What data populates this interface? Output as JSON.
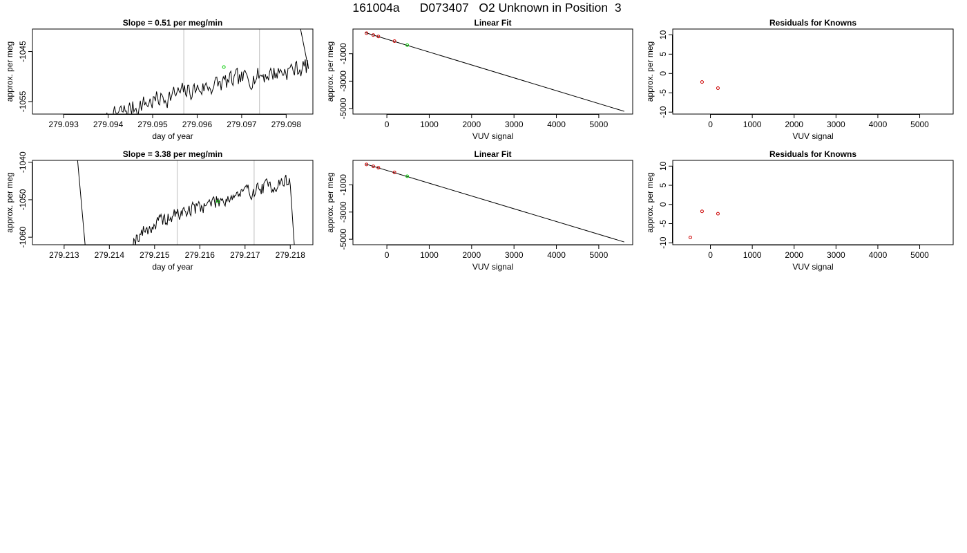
{
  "page_title": "161004a      D073407   O2 Unknown in Position  3",
  "colors": {
    "line": "#000000",
    "marker_known": "#cc0000",
    "marker_unknown": "#00cc00",
    "vline": "#c8c8c8"
  },
  "chart_data": [
    {
      "id": "r1-time",
      "type": "line",
      "panel": "top-left",
      "title": "Slope =  0.51  per meg/min",
      "xlabel": "day of year",
      "ylabel": "approx. per meg",
      "xlim": [
        279.0923,
        279.0986
      ],
      "ylim": [
        -1057.5,
        -1040.5
      ],
      "xticks": [
        "279.093",
        "279.094",
        "279.095",
        "279.096",
        "279.097",
        "279.098"
      ],
      "yticks": [
        "-1045",
        "-1055"
      ],
      "vlines": [
        279.0957,
        279.0974
      ],
      "series_spec": {
        "x_start": 279.0939,
        "x_end": 279.0985,
        "n": 190,
        "start": -1060,
        "end": -1048,
        "amp": 1.6,
        "seed": 7,
        "rise_x": 279.0982,
        "rise_to": -1035,
        "lead_in": 279.0943
      },
      "highlight": [
        279.0966,
        -1048.1
      ]
    },
    {
      "id": "r1-fit",
      "type": "line",
      "panel": "top-middle",
      "title": "Linear Fit",
      "xlabel": "VUV signal",
      "ylabel": "approx. per meg",
      "xlim": [
        -800,
        5800
      ],
      "ylim": [
        -5400,
        800
      ],
      "xticks": [
        "0",
        "1000",
        "2000",
        "3000",
        "4000",
        "5000"
      ],
      "yticks": [
        "-1000",
        "-3000",
        "-5000"
      ],
      "fit": {
        "x": [
          -500,
          5600
        ],
        "y": [
          530,
          -5200
        ]
      },
      "known_points": [
        [
          -480,
          500
        ],
        [
          -320,
          360
        ],
        [
          -200,
          260
        ],
        [
          180,
          -80
        ]
      ],
      "unknown_points": [
        [
          480,
          -370
        ]
      ]
    },
    {
      "id": "r1-resid",
      "type": "scatter",
      "panel": "top-right",
      "title": "Residuals for Knowns",
      "xlabel": "VUV signal",
      "ylabel": "approx. per meg",
      "xlim": [
        -900,
        5800
      ],
      "ylim": [
        -10.5,
        11.5
      ],
      "xticks": [
        "0",
        "1000",
        "2000",
        "3000",
        "4000",
        "5000"
      ],
      "yticks": [
        "10",
        "5",
        "0",
        "-5",
        "-10"
      ],
      "points": [
        [
          -200,
          -2.2
        ],
        [
          180,
          -3.8
        ]
      ]
    },
    {
      "id": "r2-time",
      "type": "line",
      "panel": "bottom-left",
      "title": "Slope =  3.38  per meg/min",
      "xlabel": "day of year",
      "ylabel": "approx. per meg",
      "xlim": [
        279.2123,
        279.2185
      ],
      "ylim": [
        -1062,
        -1039.5
      ],
      "xticks": [
        "279.213",
        "279.214",
        "279.215",
        "279.216",
        "279.217",
        "279.218"
      ],
      "yticks": [
        "-1040",
        "-1050",
        "-1060"
      ],
      "vlines": [
        279.2155,
        279.2172
      ],
      "series_spec": {
        "x_start": 279.2145,
        "x_end": 279.218,
        "n": 180,
        "start": -1062,
        "end": -1045,
        "amp": 1.7,
        "seed": 19,
        "drop_x": 279.2181,
        "drop_to": -1064,
        "spike_x": [
          279.21315,
          279.2135
        ]
      },
      "highlight": [
        279.2164,
        -1050.5
      ]
    },
    {
      "id": "r2-fit",
      "type": "line",
      "panel": "bottom-middle",
      "title": "Linear Fit",
      "xlabel": "VUV signal",
      "ylabel": "approx. per meg",
      "xlim": [
        -800,
        5800
      ],
      "ylim": [
        -5400,
        800
      ],
      "xticks": [
        "0",
        "1000",
        "2000",
        "3000",
        "4000",
        "5000"
      ],
      "yticks": [
        "-1000",
        "-3000",
        "-5000"
      ],
      "fit": {
        "x": [
          -500,
          5600
        ],
        "y": [
          530,
          -5200
        ]
      },
      "known_points": [
        [
          -480,
          500
        ],
        [
          -320,
          360
        ],
        [
          -200,
          260
        ],
        [
          180,
          -80
        ]
      ],
      "unknown_points": [
        [
          480,
          -370
        ]
      ]
    },
    {
      "id": "r2-resid",
      "type": "scatter",
      "panel": "bottom-right",
      "title": "Residuals for Knowns",
      "xlabel": "VUV signal",
      "ylabel": "approx. per meg",
      "xlim": [
        -900,
        5800
      ],
      "ylim": [
        -10.5,
        11.5
      ],
      "xticks": [
        "0",
        "1000",
        "2000",
        "3000",
        "4000",
        "5000"
      ],
      "yticks": [
        "10",
        "5",
        "0",
        "-5",
        "-10"
      ],
      "points": [
        [
          -480,
          -8.6
        ],
        [
          -200,
          -1.8
        ],
        [
          180,
          -2.4
        ]
      ]
    }
  ]
}
